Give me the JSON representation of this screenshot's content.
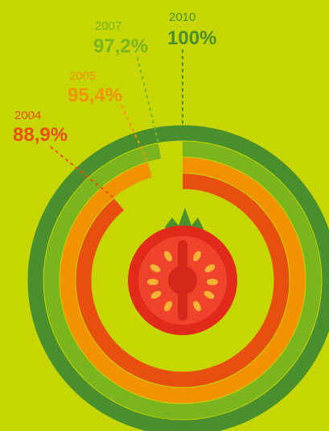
{
  "chart_data": {
    "type": "radial-bar",
    "categories": [
      "2004",
      "2005",
      "2007",
      "2010"
    ],
    "series": [
      {
        "values": [
          88.9,
          95.4,
          97.2,
          100
        ]
      }
    ],
    "labels": [
      "88,9%",
      "95,4%",
      "97,2%",
      "100%"
    ],
    "ylim": [
      0,
      100
    ],
    "colors": [
      "#e84e0e",
      "#f39200",
      "#7ab51d",
      "#4a8f2e"
    ],
    "legend": "none",
    "grid": false
  }
}
